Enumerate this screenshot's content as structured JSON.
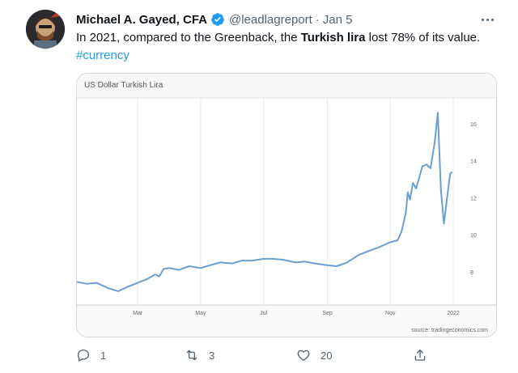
{
  "tweet": {
    "author_name": "Michael A. Gayed, CFA",
    "handle": "@leadlagreport",
    "separator": "·",
    "date": "Jan 5",
    "text_part1": "In 2021, compared to the Greenback, the ",
    "text_bold": "Turkish lira",
    "text_part2": " lost 78% of its value.",
    "hashtag": "#currency",
    "icons": {
      "verified": "verified-badge-icon",
      "more": "more-options-icon"
    }
  },
  "card": {
    "source": "source: tradingeconomics.com"
  },
  "actions": {
    "reply_count": "1",
    "retweet_count": "3",
    "like_count": "20"
  },
  "colors": {
    "accent": "#1d9bf0",
    "line": "#6a9fd4",
    "muted": "#536471"
  },
  "chart_data": {
    "type": "line",
    "title": "US Dollar Turkish Lira",
    "x_tick_labels": [
      "Mar",
      "May",
      "Jul",
      "Sep",
      "Nov",
      "2022"
    ],
    "y_tick_labels": [
      "8",
      "10",
      "12",
      "14",
      "16"
    ],
    "ylim": [
      6.2,
      17.4
    ],
    "grid": "vertical",
    "series": [
      {
        "x": [
          "2021-01-01",
          "2021-01-10",
          "2021-01-20",
          "2021-02-01",
          "2021-02-10",
          "2021-02-20",
          "2021-03-01",
          "2021-03-10",
          "2021-03-18",
          "2021-03-22",
          "2021-03-26",
          "2021-04-01",
          "2021-04-10",
          "2021-04-20",
          "2021-05-01",
          "2021-05-10",
          "2021-05-20",
          "2021-06-01",
          "2021-06-10",
          "2021-06-20",
          "2021-07-01",
          "2021-07-10",
          "2021-07-20",
          "2021-08-01",
          "2021-08-10",
          "2021-08-20",
          "2021-09-01",
          "2021-09-10",
          "2021-09-20",
          "2021-10-01",
          "2021-10-10",
          "2021-10-20",
          "2021-11-01",
          "2021-11-08",
          "2021-11-12",
          "2021-11-16",
          "2021-11-18",
          "2021-11-20",
          "2021-11-23",
          "2021-11-26",
          "2021-11-29",
          "2021-12-02",
          "2021-12-06",
          "2021-12-10",
          "2021-12-14",
          "2021-12-17",
          "2021-12-20",
          "2021-12-21",
          "2021-12-23",
          "2021-12-26",
          "2021-12-29",
          "2021-12-31"
        ],
        "y": [
          7.45,
          7.35,
          7.4,
          7.1,
          6.95,
          7.2,
          7.4,
          7.6,
          7.85,
          7.75,
          8.15,
          8.2,
          8.1,
          8.3,
          8.2,
          8.35,
          8.5,
          8.45,
          8.6,
          8.6,
          8.7,
          8.7,
          8.65,
          8.5,
          8.55,
          8.45,
          8.35,
          8.3,
          8.5,
          8.9,
          9.1,
          9.3,
          9.6,
          9.7,
          10.2,
          11.2,
          12.3,
          11.9,
          12.8,
          12.5,
          13.1,
          13.7,
          13.8,
          13.6,
          15.0,
          16.6,
          12.5,
          11.8,
          10.6,
          12.0,
          13.3,
          13.4
        ]
      }
    ]
  }
}
